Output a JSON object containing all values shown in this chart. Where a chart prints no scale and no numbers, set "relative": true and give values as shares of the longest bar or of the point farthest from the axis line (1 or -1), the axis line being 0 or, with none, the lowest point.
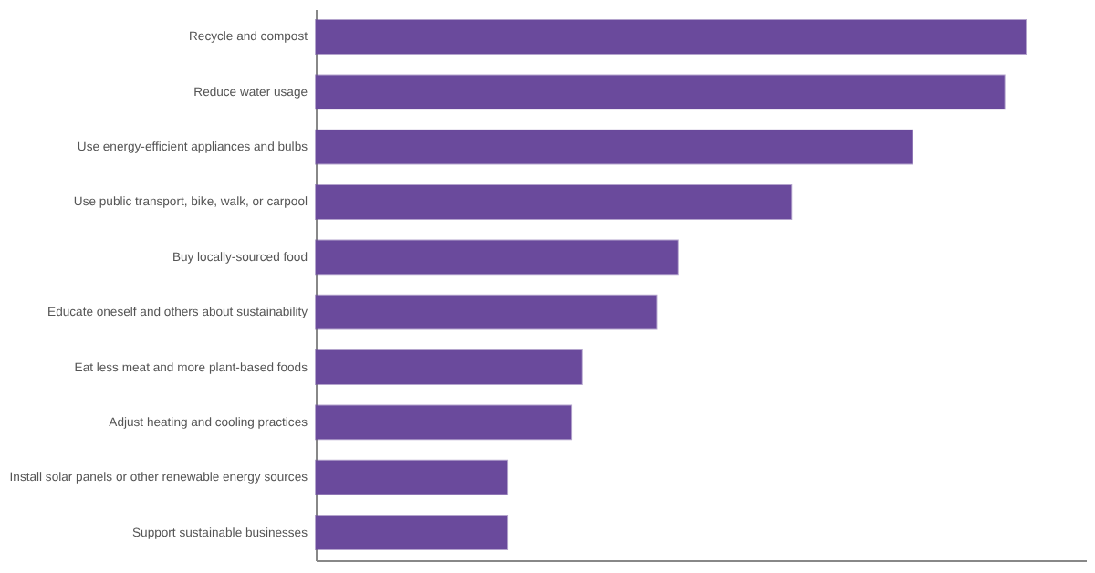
{
  "chart_data": {
    "type": "bar",
    "orientation": "horizontal",
    "relative": true,
    "categories": [
      "Recycle and compost",
      "Reduce water usage",
      "Use energy-efficient appliances and bulbs",
      "Use public transport, bike, walk, or carpool",
      "Buy locally-sourced food",
      "Educate oneself and others about sustainability",
      "Eat less meat and more plant-based foods",
      "Adjust heating and cooling practices",
      "Install solar panels or other renewable energy sources",
      "Support sustainable businesses"
    ],
    "values": [
      1,
      0.97,
      0.84,
      0.67,
      0.51,
      0.48,
      0.375,
      0.36,
      0.27,
      0.27
    ],
    "color": "#6a4a9c"
  }
}
